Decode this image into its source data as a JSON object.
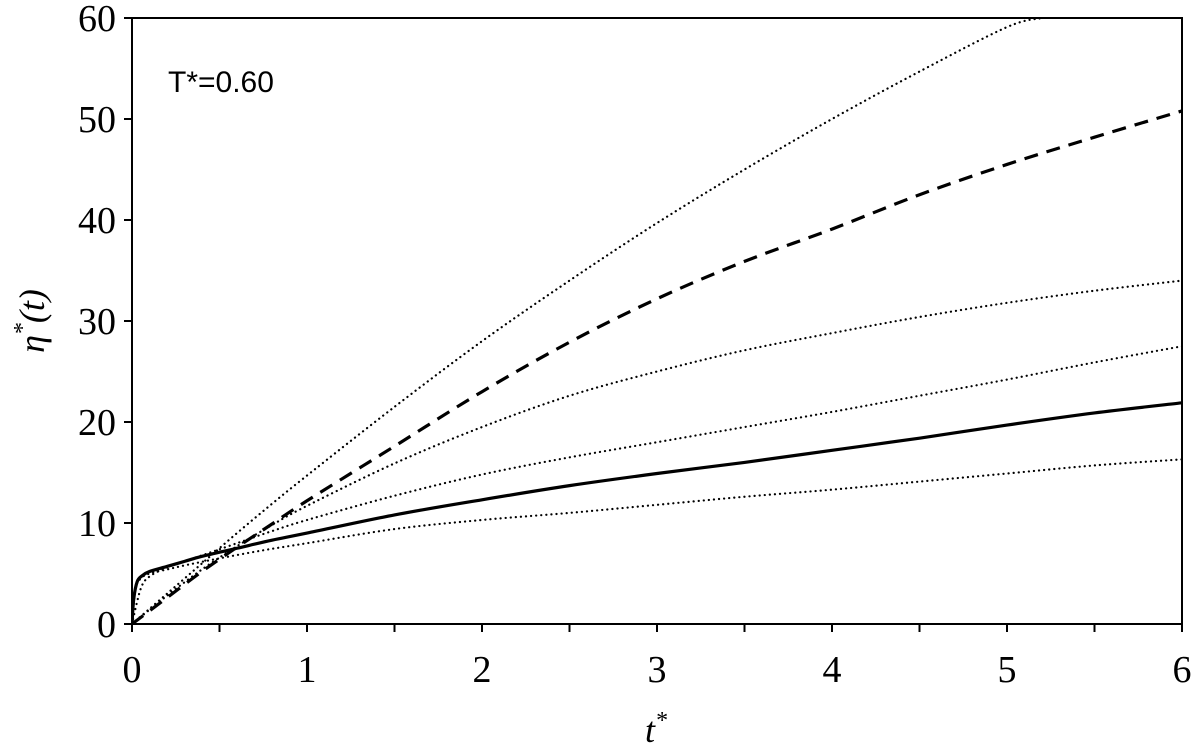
{
  "chart_data": {
    "type": "line",
    "annotation": "T*=0.60",
    "xlabel": {
      "base": "t",
      "sup": "*"
    },
    "ylabel": {
      "base": "η",
      "sup": "*",
      "rest": "(t)"
    },
    "xlim": [
      0,
      6
    ],
    "ylim": [
      0,
      60
    ],
    "x_ticks": [
      "0",
      "1",
      "2",
      "3",
      "4",
      "5",
      "6"
    ],
    "y_ticks": [
      "0",
      "10",
      "20",
      "30",
      "40",
      "50",
      "60"
    ],
    "grid": false,
    "legend": "none",
    "series": [
      {
        "style": "solid",
        "color": "#000000",
        "points": [
          [
            0,
            0
          ],
          [
            0.01,
            2.5
          ],
          [
            0.03,
            4.2
          ],
          [
            0.06,
            4.8
          ],
          [
            0.1,
            5.2
          ],
          [
            0.2,
            5.7
          ],
          [
            0.3,
            6.2
          ],
          [
            0.4,
            6.7
          ],
          [
            0.6,
            7.5
          ],
          [
            0.8,
            8.3
          ],
          [
            1,
            9.0
          ],
          [
            1.5,
            10.8
          ],
          [
            2,
            12.3
          ],
          [
            2.5,
            13.7
          ],
          [
            3,
            14.9
          ],
          [
            3.5,
            16.0
          ],
          [
            4,
            17.2
          ],
          [
            4.5,
            18.4
          ],
          [
            5,
            19.7
          ],
          [
            5.5,
            20.9
          ],
          [
            6,
            21.9
          ]
        ]
      },
      {
        "style": "dashed",
        "color": "#000000",
        "points": [
          [
            0,
            0
          ],
          [
            0.2,
            2.6
          ],
          [
            0.4,
            5.2
          ],
          [
            0.6,
            7.6
          ],
          [
            0.8,
            9.9
          ],
          [
            1,
            12.2
          ],
          [
            1.5,
            17.6
          ],
          [
            2,
            23.0
          ],
          [
            2.5,
            27.9
          ],
          [
            3,
            32.2
          ],
          [
            3.5,
            35.9
          ],
          [
            4,
            39.1
          ],
          [
            4.5,
            42.5
          ],
          [
            5,
            45.5
          ],
          [
            5.5,
            48.2
          ],
          [
            6,
            50.8
          ]
        ]
      },
      {
        "style": "dotted",
        "color": "#000000",
        "points": [
          [
            0,
            0
          ],
          [
            0.2,
            3.0
          ],
          [
            0.4,
            6.0
          ],
          [
            0.6,
            9.0
          ],
          [
            0.8,
            11.9
          ],
          [
            1,
            14.7
          ],
          [
            1.5,
            21.5
          ],
          [
            2,
            28.0
          ],
          [
            2.5,
            34.0
          ],
          [
            3,
            39.7
          ],
          [
            3.5,
            45.0
          ],
          [
            4,
            50.0
          ],
          [
            4.5,
            54.7
          ],
          [
            5,
            59.1
          ],
          [
            5.2,
            60.0
          ]
        ]
      },
      {
        "style": "dotted",
        "color": "#000000",
        "points": [
          [
            0,
            0
          ],
          [
            0.2,
            2.8
          ],
          [
            0.4,
            5.4
          ],
          [
            0.6,
            7.7
          ],
          [
            0.8,
            9.8
          ],
          [
            1,
            11.7
          ],
          [
            1.5,
            15.9
          ],
          [
            2,
            19.5
          ],
          [
            2.5,
            22.6
          ],
          [
            3,
            25.0
          ],
          [
            3.5,
            27.1
          ],
          [
            4,
            28.8
          ],
          [
            4.5,
            30.4
          ],
          [
            5,
            31.8
          ],
          [
            5.5,
            33.0
          ],
          [
            6,
            34.0
          ]
        ]
      },
      {
        "style": "dotted",
        "color": "#000000",
        "points": [
          [
            0,
            0
          ],
          [
            0.05,
            3.5
          ],
          [
            0.1,
            4.7
          ],
          [
            0.2,
            5.6
          ],
          [
            0.3,
            6.2
          ],
          [
            0.4,
            6.8
          ],
          [
            0.6,
            8.0
          ],
          [
            0.8,
            9.2
          ],
          [
            1,
            10.3
          ],
          [
            1.5,
            12.7
          ],
          [
            2,
            14.8
          ],
          [
            2.5,
            16.5
          ],
          [
            3,
            18.0
          ],
          [
            3.5,
            19.5
          ],
          [
            4,
            21.0
          ],
          [
            4.5,
            22.6
          ],
          [
            5,
            24.2
          ],
          [
            5.5,
            25.9
          ],
          [
            6,
            27.5
          ]
        ]
      },
      {
        "style": "dotted",
        "color": "#000000",
        "points": [
          [
            0,
            0
          ],
          [
            0.02,
            3.5
          ],
          [
            0.05,
            4.5
          ],
          [
            0.1,
            5.0
          ],
          [
            0.2,
            5.4
          ],
          [
            0.3,
            5.8
          ],
          [
            0.5,
            6.5
          ],
          [
            0.75,
            7.3
          ],
          [
            1,
            8.0
          ],
          [
            1.5,
            9.4
          ],
          [
            2,
            10.3
          ],
          [
            2.5,
            11.0
          ],
          [
            3,
            11.8
          ],
          [
            3.5,
            12.6
          ],
          [
            4,
            13.3
          ],
          [
            4.5,
            14.1
          ],
          [
            5,
            14.9
          ],
          [
            5.5,
            15.7
          ],
          [
            6,
            16.3
          ]
        ]
      }
    ]
  }
}
